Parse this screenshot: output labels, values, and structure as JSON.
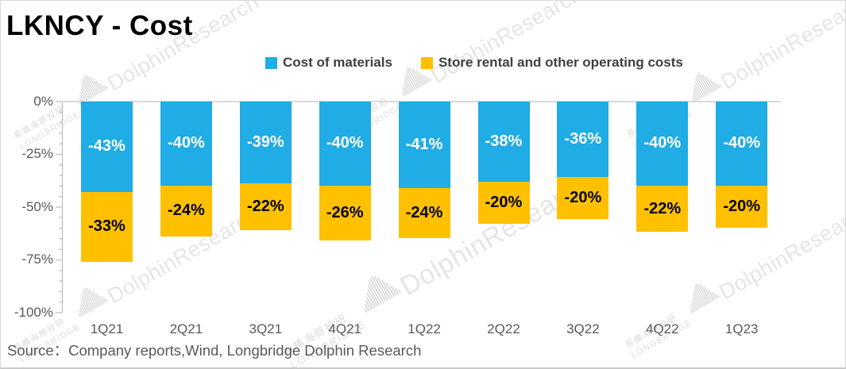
{
  "title": "LKNCY - Cost",
  "legend": {
    "items": [
      {
        "label": "Cost of materials",
        "color": "#20ACE4"
      },
      {
        "label": "Store rental and other operating costs",
        "color": "#FFC000"
      }
    ]
  },
  "source": "Source：Company reports,Wind, Longbridge Dolphin Research",
  "watermark": {
    "cn_text": "長橋海豚投研",
    "brand_text": "LONGBRIDGE",
    "big_text": "DolphinResearch",
    "icon": "audio-bars-icon"
  },
  "colors": {
    "blue": "#20ACE4",
    "yellow": "#FFC000",
    "axis_line": "#BFBFBF",
    "gridline": "#D9D9D9",
    "tick_text": "#595959",
    "blue_label_text": "#FFFFFF",
    "yellow_label_text": "#000000"
  },
  "chart_data": {
    "type": "bar",
    "stacked": true,
    "title": "LKNCY - Cost",
    "categories": [
      "1Q21",
      "2Q21",
      "3Q21",
      "4Q21",
      "1Q22",
      "2Q22",
      "3Q22",
      "4Q22",
      "1Q23"
    ],
    "series": [
      {
        "name": "Cost of materials",
        "color": "#20ACE4",
        "label_color": "#FFFFFF",
        "values": [
          -43,
          -40,
          -39,
          -40,
          -41,
          -38,
          -36,
          -40,
          -40
        ]
      },
      {
        "name": "Store rental and other operating costs",
        "color": "#FFC000",
        "label_color": "#000000",
        "values": [
          -33,
          -24,
          -22,
          -26,
          -24,
          -20,
          -20,
          -22,
          -20
        ]
      }
    ],
    "value_suffix": "%",
    "xlabel": "",
    "ylabel": "",
    "ylim": [
      -100,
      0
    ],
    "yticks": [
      {
        "label": "0%",
        "value": 0
      },
      {
        "label": "-25%",
        "value": -25
      },
      {
        "label": "-50%",
        "value": -50
      },
      {
        "label": "-75%",
        "value": -75
      },
      {
        "label": "-100%",
        "value": -100
      }
    ],
    "minor_tick_step": 5,
    "grid": "zero-line-only",
    "legend_position": "top-center"
  }
}
